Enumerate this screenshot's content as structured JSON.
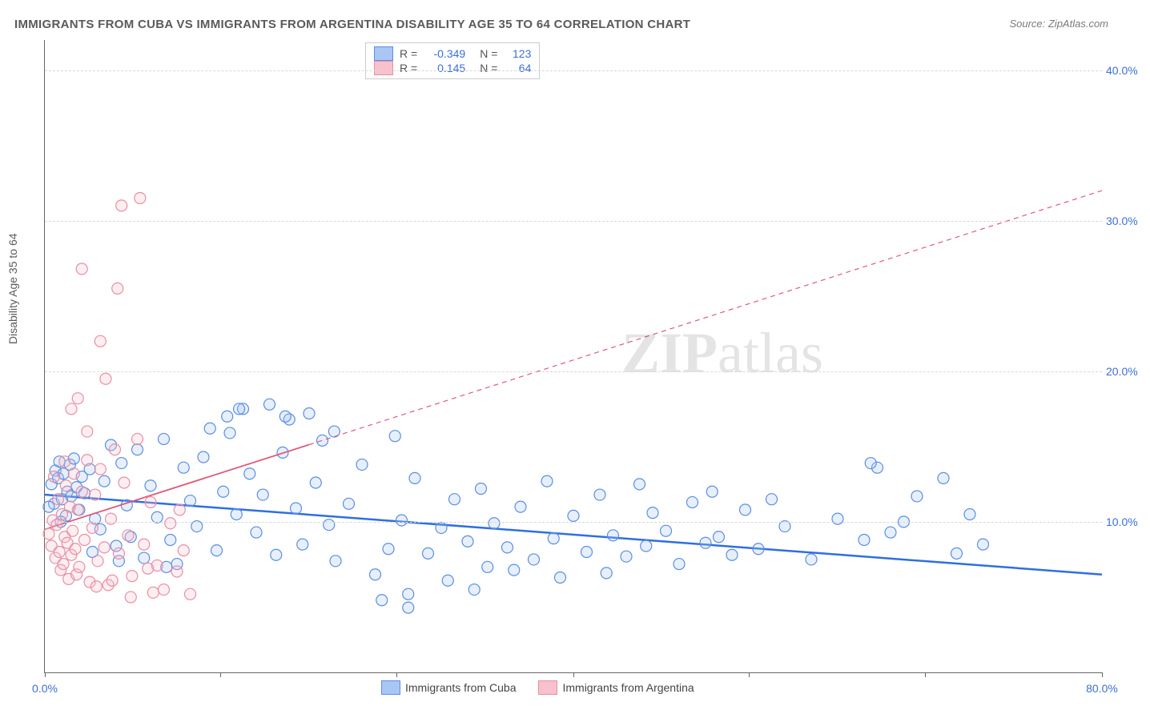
{
  "title": "IMMIGRANTS FROM CUBA VS IMMIGRANTS FROM ARGENTINA DISABILITY AGE 35 TO 64 CORRELATION CHART",
  "source_label": "Source: ZipAtlas.com",
  "ylabel": "Disability Age 35 to 64",
  "watermark": {
    "bold": "ZIP",
    "light": "atlas"
  },
  "chart": {
    "type": "scatter",
    "xlim": [
      0,
      80
    ],
    "ylim": [
      0,
      42
    ],
    "x_ticks": [
      0,
      13.3,
      26.6,
      40,
      53.3,
      66.6,
      80
    ],
    "x_tick_labels": {
      "0": "0.0%",
      "80": "80.0%"
    },
    "y_grid": [
      10,
      20,
      30,
      40
    ],
    "y_tick_labels": {
      "10": "10.0%",
      "20": "20.0%",
      "30": "30.0%",
      "40": "40.0%"
    },
    "background_color": "#ffffff",
    "grid_color": "#d8d8d8",
    "axis_color": "#666666",
    "tick_label_color": "#3b6fd8",
    "marker_radius": 7,
    "marker_stroke_width": 1.2,
    "marker_fill_opacity": 0.28,
    "series": [
      {
        "name": "Immigrants from Cuba",
        "color_fill": "#a9c6f5",
        "color_stroke": "#5b8fe0",
        "R": "-0.349",
        "N": "123",
        "trend": {
          "x1": 0,
          "y1": 11.8,
          "x2": 80,
          "y2": 6.5,
          "color": "#2f6fe0",
          "width": 2.5,
          "solid_until_x": 80
        },
        "points": [
          [
            0.5,
            12.5
          ],
          [
            0.7,
            11.2
          ],
          [
            0.8,
            13.4
          ],
          [
            1.0,
            12.9
          ],
          [
            1.1,
            14.0
          ],
          [
            1.3,
            11.5
          ],
          [
            1.4,
            13.2
          ],
          [
            1.6,
            10.4
          ],
          [
            1.7,
            12.0
          ],
          [
            1.9,
            13.8
          ],
          [
            2.0,
            11.7
          ],
          [
            2.2,
            14.2
          ],
          [
            2.4,
            12.3
          ],
          [
            2.6,
            10.8
          ],
          [
            2.8,
            13.0
          ],
          [
            3.0,
            11.9
          ],
          [
            3.4,
            13.5
          ],
          [
            3.8,
            10.2
          ],
          [
            4.2,
            9.5
          ],
          [
            4.5,
            12.7
          ],
          [
            5.0,
            15.1
          ],
          [
            5.4,
            8.4
          ],
          [
            5.8,
            13.9
          ],
          [
            6.2,
            11.1
          ],
          [
            6.5,
            9.0
          ],
          [
            7.0,
            14.8
          ],
          [
            7.5,
            7.6
          ],
          [
            8.0,
            12.4
          ],
          [
            8.5,
            10.3
          ],
          [
            9.0,
            15.5
          ],
          [
            9.5,
            8.8
          ],
          [
            10.0,
            7.2
          ],
          [
            10.5,
            13.6
          ],
          [
            11.0,
            11.4
          ],
          [
            11.5,
            9.7
          ],
          [
            12.0,
            14.3
          ],
          [
            12.5,
            16.2
          ],
          [
            13.0,
            8.1
          ],
          [
            13.5,
            12.0
          ],
          [
            14.0,
            15.9
          ],
          [
            14.5,
            10.5
          ],
          [
            15.0,
            17.5
          ],
          [
            15.5,
            13.2
          ],
          [
            16.0,
            9.3
          ],
          [
            16.5,
            11.8
          ],
          [
            17.0,
            17.8
          ],
          [
            17.5,
            7.8
          ],
          [
            18.0,
            14.6
          ],
          [
            18.5,
            16.8
          ],
          [
            19.0,
            10.9
          ],
          [
            19.5,
            8.5
          ],
          [
            20.0,
            17.2
          ],
          [
            20.5,
            12.6
          ],
          [
            21.0,
            15.4
          ],
          [
            21.5,
            9.8
          ],
          [
            22.0,
            7.4
          ],
          [
            23.0,
            11.2
          ],
          [
            24.0,
            13.8
          ],
          [
            25.0,
            6.5
          ],
          [
            25.5,
            4.8
          ],
          [
            26.0,
            8.2
          ],
          [
            26.5,
            15.7
          ],
          [
            27.0,
            10.1
          ],
          [
            27.5,
            5.2
          ],
          [
            28.0,
            12.9
          ],
          [
            29.0,
            7.9
          ],
          [
            30.0,
            9.6
          ],
          [
            30.5,
            6.1
          ],
          [
            31.0,
            11.5
          ],
          [
            32.0,
            8.7
          ],
          [
            32.5,
            5.5
          ],
          [
            33.0,
            12.2
          ],
          [
            33.5,
            7.0
          ],
          [
            34.0,
            9.9
          ],
          [
            35.0,
            8.3
          ],
          [
            35.5,
            6.8
          ],
          [
            36.0,
            11.0
          ],
          [
            37.0,
            7.5
          ],
          [
            38.0,
            12.7
          ],
          [
            38.5,
            8.9
          ],
          [
            39.0,
            6.3
          ],
          [
            40.0,
            10.4
          ],
          [
            41.0,
            8.0
          ],
          [
            42.0,
            11.8
          ],
          [
            42.5,
            6.6
          ],
          [
            43.0,
            9.1
          ],
          [
            44.0,
            7.7
          ],
          [
            45.0,
            12.5
          ],
          [
            45.5,
            8.4
          ],
          [
            46.0,
            10.6
          ],
          [
            47.0,
            9.4
          ],
          [
            48.0,
            7.2
          ],
          [
            49.0,
            11.3
          ],
          [
            50.0,
            8.6
          ],
          [
            50.5,
            12.0
          ],
          [
            51.0,
            9.0
          ],
          [
            52.0,
            7.8
          ],
          [
            53.0,
            10.8
          ],
          [
            54.0,
            8.2
          ],
          [
            55.0,
            11.5
          ],
          [
            56.0,
            9.7
          ],
          [
            58.0,
            7.5
          ],
          [
            60.0,
            10.2
          ],
          [
            62.0,
            8.8
          ],
          [
            63.0,
            13.6
          ],
          [
            64.0,
            9.3
          ],
          [
            66.0,
            11.7
          ],
          [
            68.0,
            12.9
          ],
          [
            69.0,
            7.9
          ],
          [
            70.0,
            10.5
          ],
          [
            62.5,
            13.9
          ],
          [
            65.0,
            10.0
          ],
          [
            71.0,
            8.5
          ],
          [
            27.5,
            4.3
          ],
          [
            21.9,
            16.0
          ],
          [
            18.2,
            17.0
          ],
          [
            13.8,
            17.0
          ],
          [
            14.7,
            17.5
          ],
          [
            9.2,
            7.0
          ],
          [
            5.6,
            7.4
          ],
          [
            3.6,
            8.0
          ],
          [
            1.2,
            10.0
          ],
          [
            0.3,
            11.0
          ]
        ]
      },
      {
        "name": "Immigrants from Argentina",
        "color_fill": "#f7c1cd",
        "color_stroke": "#e88fa5",
        "R": "0.145",
        "N": "64",
        "trend": {
          "x1": 0,
          "y1": 9.5,
          "x2": 80,
          "y2": 32.0,
          "color": "#e05a7a",
          "width": 1.8,
          "solid_until_x": 20
        },
        "points": [
          [
            0.3,
            9.2
          ],
          [
            0.5,
            8.4
          ],
          [
            0.6,
            10.1
          ],
          [
            0.8,
            7.6
          ],
          [
            0.9,
            9.8
          ],
          [
            1.0,
            11.5
          ],
          [
            1.1,
            8.0
          ],
          [
            1.2,
            6.8
          ],
          [
            1.3,
            10.5
          ],
          [
            1.4,
            7.2
          ],
          [
            1.5,
            9.0
          ],
          [
            1.6,
            12.4
          ],
          [
            1.7,
            8.6
          ],
          [
            1.8,
            6.2
          ],
          [
            1.9,
            11.0
          ],
          [
            2.0,
            7.8
          ],
          [
            2.1,
            9.4
          ],
          [
            2.2,
            13.2
          ],
          [
            2.3,
            8.2
          ],
          [
            2.4,
            6.5
          ],
          [
            2.5,
            10.8
          ],
          [
            2.6,
            7.0
          ],
          [
            2.8,
            12.0
          ],
          [
            3.0,
            8.8
          ],
          [
            3.2,
            14.1
          ],
          [
            3.4,
            6.0
          ],
          [
            3.6,
            9.6
          ],
          [
            3.8,
            11.8
          ],
          [
            4.0,
            7.4
          ],
          [
            4.2,
            13.5
          ],
          [
            4.5,
            8.3
          ],
          [
            4.8,
            5.8
          ],
          [
            5.0,
            10.2
          ],
          [
            5.3,
            14.8
          ],
          [
            5.6,
            7.9
          ],
          [
            6.0,
            12.6
          ],
          [
            6.3,
            9.1
          ],
          [
            6.6,
            6.4
          ],
          [
            7.0,
            15.5
          ],
          [
            7.5,
            8.5
          ],
          [
            8.0,
            11.3
          ],
          [
            8.5,
            7.1
          ],
          [
            9.0,
            5.5
          ],
          [
            9.5,
            9.9
          ],
          [
            10.0,
            6.7
          ],
          [
            10.5,
            8.1
          ],
          [
            11.0,
            5.2
          ],
          [
            2.0,
            17.5
          ],
          [
            2.5,
            18.2
          ],
          [
            4.6,
            19.5
          ],
          [
            4.2,
            22.0
          ],
          [
            5.5,
            25.5
          ],
          [
            5.8,
            31.0
          ],
          [
            7.2,
            31.5
          ],
          [
            2.8,
            26.8
          ],
          [
            3.2,
            16.0
          ],
          [
            1.5,
            14.0
          ],
          [
            0.7,
            13.0
          ],
          [
            6.5,
            5.0
          ],
          [
            8.2,
            5.3
          ],
          [
            3.9,
            5.7
          ],
          [
            5.1,
            6.1
          ],
          [
            7.8,
            6.9
          ],
          [
            10.2,
            10.8
          ]
        ]
      }
    ],
    "legend_top": {
      "rows": [
        {
          "swatch_fill": "#a9c6f5",
          "swatch_stroke": "#5b8fe0",
          "text_r": "R =",
          "val_r": "-0.349",
          "text_n": "N =",
          "val_n": "123"
        },
        {
          "swatch_fill": "#f7c1cd",
          "swatch_stroke": "#e88fa5",
          "text_r": "R =",
          "val_r": " 0.145",
          "text_n": "N =",
          "val_n": " 64"
        }
      ],
      "label_color": "#555555",
      "value_color": "#3b6fd8"
    },
    "legend_bottom": [
      {
        "swatch_fill": "#a9c6f5",
        "swatch_stroke": "#5b8fe0",
        "label": "Immigrants from Cuba"
      },
      {
        "swatch_fill": "#f7c1cd",
        "swatch_stroke": "#e88fa5",
        "label": "Immigrants from Argentina"
      }
    ]
  }
}
